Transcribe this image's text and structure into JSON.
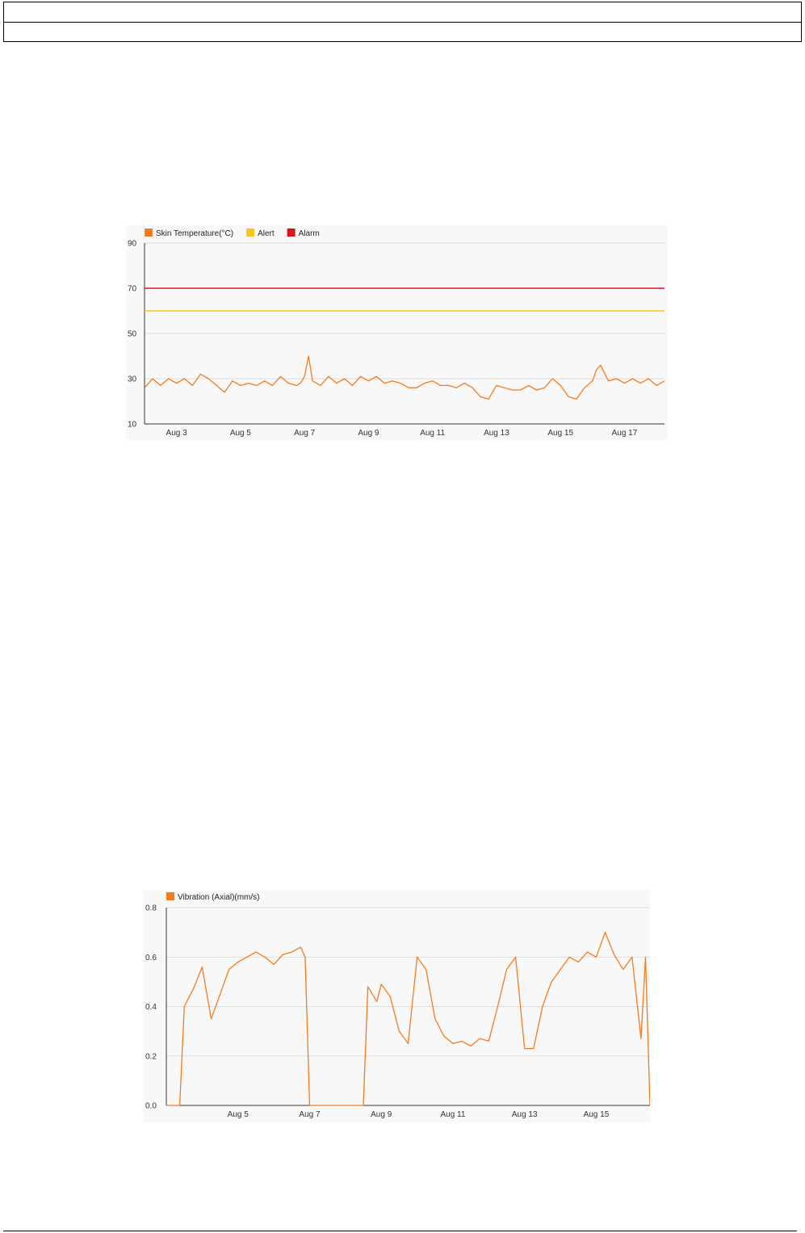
{
  "header": {
    "row1": "",
    "row2": ""
  },
  "colors": {
    "series": "#f47b20",
    "alert": "#f6c61c",
    "alarm": "#d9161c",
    "grid": "#dddddd",
    "axis": "#333333"
  },
  "chart_data": [
    {
      "type": "line",
      "title": "",
      "xlabel": "",
      "ylabel": "",
      "legend_position": "top-left",
      "grid": true,
      "ylim": [
        10,
        90
      ],
      "xlim": [
        "2023-08-02T00:00",
        "2023-08-18T06:00"
      ],
      "y_ticks": [
        "90",
        "70",
        "50",
        "30",
        "10"
      ],
      "x_ticks": [
        "Aug 3",
        "Aug 5",
        "Aug 7",
        "Aug 9",
        "Aug 11",
        "Aug 13",
        "Aug 15",
        "Aug 17"
      ],
      "x_tick_dates": [
        "2023-08-03",
        "2023-08-05",
        "2023-08-07",
        "2023-08-09",
        "2023-08-11",
        "2023-08-13",
        "2023-08-15",
        "2023-08-17"
      ],
      "series": [
        {
          "name": "Skin Temperature(°C)",
          "color": "#f47b20",
          "x": [
            "2023-08-02T00:00",
            "2023-08-02T06:00",
            "2023-08-02T12:00",
            "2023-08-02T18:00",
            "2023-08-03T00:00",
            "2023-08-03T06:00",
            "2023-08-03T12:00",
            "2023-08-03T18:00",
            "2023-08-04T00:00",
            "2023-08-04T06:00",
            "2023-08-04T12:00",
            "2023-08-04T18:00",
            "2023-08-05T00:00",
            "2023-08-05T06:00",
            "2023-08-05T12:00",
            "2023-08-05T18:00",
            "2023-08-06T00:00",
            "2023-08-06T06:00",
            "2023-08-06T12:00",
            "2023-08-06T18:00",
            "2023-08-06T21:00",
            "2023-08-07T00:00",
            "2023-08-07T03:00",
            "2023-08-07T06:00",
            "2023-08-07T12:00",
            "2023-08-07T18:00",
            "2023-08-08T00:00",
            "2023-08-08T06:00",
            "2023-08-08T12:00",
            "2023-08-08T18:00",
            "2023-08-09T00:00",
            "2023-08-09T06:00",
            "2023-08-09T12:00",
            "2023-08-09T18:00",
            "2023-08-10T00:00",
            "2023-08-10T06:00",
            "2023-08-10T12:00",
            "2023-08-10T18:00",
            "2023-08-11T00:00",
            "2023-08-11T06:00",
            "2023-08-11T12:00",
            "2023-08-11T18:00",
            "2023-08-12T00:00",
            "2023-08-12T06:00",
            "2023-08-12T12:00",
            "2023-08-12T18:00",
            "2023-08-13T00:00",
            "2023-08-13T06:00",
            "2023-08-13T12:00",
            "2023-08-13T18:00",
            "2023-08-14T00:00",
            "2023-08-14T06:00",
            "2023-08-14T12:00",
            "2023-08-14T18:00",
            "2023-08-15T00:00",
            "2023-08-15T06:00",
            "2023-08-15T12:00",
            "2023-08-15T18:00",
            "2023-08-16T00:00",
            "2023-08-16T03:00",
            "2023-08-16T06:00",
            "2023-08-16T12:00",
            "2023-08-16T18:00",
            "2023-08-17T00:00",
            "2023-08-17T06:00",
            "2023-08-17T12:00",
            "2023-08-17T18:00",
            "2023-08-18T00:00",
            "2023-08-18T06:00"
          ],
          "y": [
            26,
            30,
            27,
            30,
            28,
            30,
            27,
            32,
            30,
            27,
            24,
            29,
            27,
            28,
            27,
            29,
            27,
            31,
            28,
            27,
            28,
            31,
            40,
            29,
            27,
            31,
            28,
            30,
            27,
            31,
            29,
            31,
            28,
            29,
            28,
            26,
            26,
            28,
            29,
            27,
            27,
            26,
            28,
            26,
            22,
            21,
            27,
            26,
            25,
            25,
            27,
            25,
            26,
            30,
            27,
            22,
            21,
            26,
            29,
            34,
            36,
            29,
            30,
            28,
            30,
            28,
            30,
            27,
            29
          ]
        },
        {
          "name": "Alert",
          "color": "#f6c61c",
          "x": [
            "2023-08-02T00:00",
            "2023-08-18T06:00"
          ],
          "y": [
            60,
            60
          ]
        },
        {
          "name": "Alarm",
          "color": "#d9161c",
          "x": [
            "2023-08-02T00:00",
            "2023-08-18T06:00"
          ],
          "y": [
            70,
            70
          ]
        }
      ]
    },
    {
      "type": "line",
      "title": "",
      "xlabel": "",
      "ylabel": "",
      "legend_position": "top-left",
      "grid": true,
      "ylim": [
        0,
        0.8
      ],
      "xlim": [
        "2023-08-03T00:00",
        "2023-08-16T12:00"
      ],
      "y_ticks": [
        "0.8",
        "0.6",
        "0.4",
        "0.2",
        "0.0"
      ],
      "x_ticks": [
        "Aug 5",
        "Aug 7",
        "Aug 9",
        "Aug 11",
        "Aug 13",
        "Aug 15"
      ],
      "x_tick_dates": [
        "2023-08-05",
        "2023-08-07",
        "2023-08-09",
        "2023-08-11",
        "2023-08-13",
        "2023-08-15"
      ],
      "series": [
        {
          "name": "Vibration (Axial)(mm/s)",
          "color": "#f47b20",
          "x": [
            "2023-08-03T00:00",
            "2023-08-03T09:00",
            "2023-08-03T12:00",
            "2023-08-03T18:00",
            "2023-08-04T00:00",
            "2023-08-04T06:00",
            "2023-08-04T12:00",
            "2023-08-04T18:00",
            "2023-08-05T00:00",
            "2023-08-05T06:00",
            "2023-08-05T12:00",
            "2023-08-05T18:00",
            "2023-08-06T00:00",
            "2023-08-06T06:00",
            "2023-08-06T12:00",
            "2023-08-06T18:00",
            "2023-08-06T21:00",
            "2023-08-07T00:00",
            "2023-08-08T12:00",
            "2023-08-08T15:00",
            "2023-08-08T21:00",
            "2023-08-09T00:00",
            "2023-08-09T06:00",
            "2023-08-09T12:00",
            "2023-08-09T18:00",
            "2023-08-10T00:00",
            "2023-08-10T06:00",
            "2023-08-10T12:00",
            "2023-08-10T18:00",
            "2023-08-11T00:00",
            "2023-08-11T06:00",
            "2023-08-11T12:00",
            "2023-08-11T18:00",
            "2023-08-12T00:00",
            "2023-08-12T06:00",
            "2023-08-12T12:00",
            "2023-08-12T18:00",
            "2023-08-13T00:00",
            "2023-08-13T06:00",
            "2023-08-13T12:00",
            "2023-08-13T18:00",
            "2023-08-14T00:00",
            "2023-08-14T06:00",
            "2023-08-14T12:00",
            "2023-08-14T18:00",
            "2023-08-15T00:00",
            "2023-08-15T06:00",
            "2023-08-15T12:00",
            "2023-08-15T18:00",
            "2023-08-16T00:00",
            "2023-08-16T06:00",
            "2023-08-16T09:00",
            "2023-08-16T12:00"
          ],
          "y": [
            0,
            0,
            0.4,
            0.47,
            0.56,
            0.35,
            0.45,
            0.55,
            0.58,
            0.6,
            0.62,
            0.6,
            0.57,
            0.61,
            0.62,
            0.64,
            0.6,
            0,
            0,
            0.48,
            0.42,
            0.49,
            0.44,
            0.3,
            0.25,
            0.6,
            0.55,
            0.35,
            0.28,
            0.25,
            0.26,
            0.24,
            0.27,
            0.26,
            0.4,
            0.55,
            0.6,
            0.23,
            0.23,
            0.4,
            0.5,
            0.55,
            0.6,
            0.58,
            0.62,
            0.6,
            0.7,
            0.61,
            0.55,
            0.6,
            0.27,
            0.6,
            0
          ]
        }
      ]
    }
  ]
}
